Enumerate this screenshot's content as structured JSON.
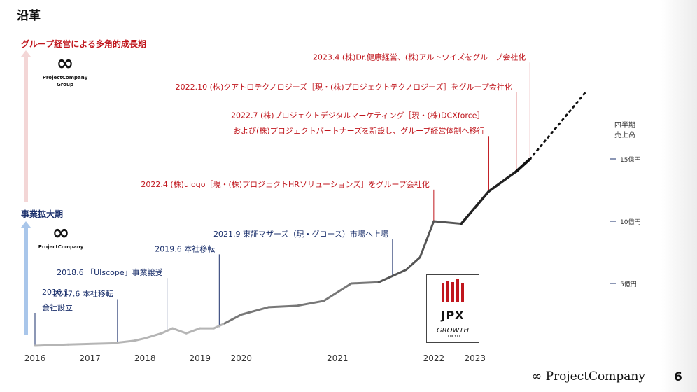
{
  "page": {
    "title": "沿革",
    "page_number": "6",
    "footer_brand": "∞ ProjectCompany"
  },
  "stages": {
    "growth": {
      "label": "グループ経営による多角的成長期",
      "logo_name_1": "ProjectCompany",
      "logo_name_2": "Group"
    },
    "expand": {
      "label": "事業拡大期",
      "logo_name_1": "ProjectCompany"
    }
  },
  "listing_logo": {
    "main": "JPX",
    "sub1": "GROWTH",
    "sub2": "TOKYO"
  },
  "colors": {
    "red": "#c0161d",
    "navy": "#1a2f6b",
    "line_dark": "#111111",
    "line_mid": "#555555",
    "line_light": "#b5b5b5"
  },
  "chart_data": {
    "type": "line",
    "title": "",
    "ylabel": "四半期 売上高",
    "y_ticks": [
      {
        "value": 5,
        "label": "5億円"
      },
      {
        "value": 10,
        "label": "10億円"
      },
      {
        "value": 15,
        "label": "15億円"
      }
    ],
    "x_ticks": [
      {
        "t": 2016.0,
        "label": "2016"
      },
      {
        "t": 2017.0,
        "label": "2017"
      },
      {
        "t": 2018.0,
        "label": "2018"
      },
      {
        "t": 2019.0,
        "label": "2019"
      },
      {
        "t": 2019.75,
        "label": "2020"
      },
      {
        "t": 2021.5,
        "label": "2021"
      },
      {
        "t": 2023.25,
        "label": "2022"
      },
      {
        "t": 2024.0,
        "label": "2023"
      }
    ],
    "ylim": [
      0,
      22
    ],
    "series": [
      {
        "values": [
          {
            "t": 2016.0,
            "y": 0.0
          },
          {
            "t": 2016.6,
            "y": 0.1
          },
          {
            "t": 2017.4,
            "y": 0.2
          },
          {
            "t": 2017.8,
            "y": 0.4
          },
          {
            "t": 2018.0,
            "y": 0.6
          },
          {
            "t": 2018.3,
            "y": 1.0
          },
          {
            "t": 2018.5,
            "y": 1.4
          },
          {
            "t": 2018.75,
            "y": 1.0
          },
          {
            "t": 2019.0,
            "y": 1.4
          },
          {
            "t": 2019.25,
            "y": 1.4
          },
          {
            "t": 2019.45,
            "y": 1.8
          },
          {
            "t": 2019.75,
            "y": 2.5
          },
          {
            "t": 2020.25,
            "y": 3.1
          },
          {
            "t": 2020.75,
            "y": 3.2
          },
          {
            "t": 2021.25,
            "y": 3.6
          },
          {
            "t": 2021.75,
            "y": 5.0
          },
          {
            "t": 2022.25,
            "y": 5.1
          },
          {
            "t": 2022.75,
            "y": 6.1
          },
          {
            "t": 2023.0,
            "y": 7.1
          },
          {
            "t": 2023.25,
            "y": 10.0
          },
          {
            "t": 2023.75,
            "y": 9.8
          },
          {
            "t": 2024.25,
            "y": 12.4
          },
          {
            "t": 2024.75,
            "y": 14.0
          },
          {
            "t": 2025.0,
            "y": 15.0
          }
        ],
        "projection": [
          {
            "t": 2025.0,
            "y": 15.0
          },
          {
            "t": 2026.0,
            "y": 20.3
          }
        ]
      }
    ],
    "events": [
      {
        "t": 2016.0,
        "y": 0.0,
        "label_top": 2.3,
        "lines": [
          "2016.1",
          "会社設立"
        ],
        "color": "#1a2f6b"
      },
      {
        "t": 2017.5,
        "y": 0.2,
        "label_top": 3.4,
        "lines": [
          "2017.6 本社移転"
        ],
        "color": "#1a2f6b"
      },
      {
        "t": 2018.4,
        "y": 1.2,
        "label_top": 5.1,
        "lines": [
          "2018.6 「UIscope」事業譲受"
        ],
        "color": "#1a2f6b"
      },
      {
        "t": 2019.35,
        "y": 1.5,
        "label_top": 7.0,
        "lines": [
          "2019.6 本社移転"
        ],
        "color": "#1a2f6b"
      },
      {
        "t": 2022.5,
        "y": 5.6,
        "label_top": 8.2,
        "lines": [
          "2021.9 東証マザーズ（現・グロース）市場へ上場"
        ],
        "color": "#1a2f6b"
      },
      {
        "t": 2023.25,
        "y": 10.0,
        "label_top": 12.2,
        "lines": [
          "2022.4 (株)uloqo［現・(株)プロジェクトHRソリューションズ］をグループ会社化"
        ],
        "color": "#c0161d"
      },
      {
        "t": 2024.25,
        "y": 12.4,
        "label_top": 16.5,
        "lines": [
          "2022.7 (株)プロジェクトデジタルマーケティング［現・(株)DCXforce］",
          "および(株)プロジェクトパートナーズを新設し、グループ経営体制へ移行"
        ],
        "color": "#c0161d"
      },
      {
        "t": 2024.75,
        "y": 14.0,
        "label_top": 20.0,
        "lines": [
          "2022.10 (株)クアトロテクノロジーズ［現・(株)プロジェクトテクノロジーズ］をグループ会社化"
        ],
        "color": "#c0161d"
      },
      {
        "t": 2025.0,
        "y": 15.0,
        "label_top": 22.4,
        "lines": [
          "2023.4 (株)Dr.健康経営、(株)アルトワイズをグループ会社化"
        ],
        "color": "#c0161d"
      }
    ]
  }
}
